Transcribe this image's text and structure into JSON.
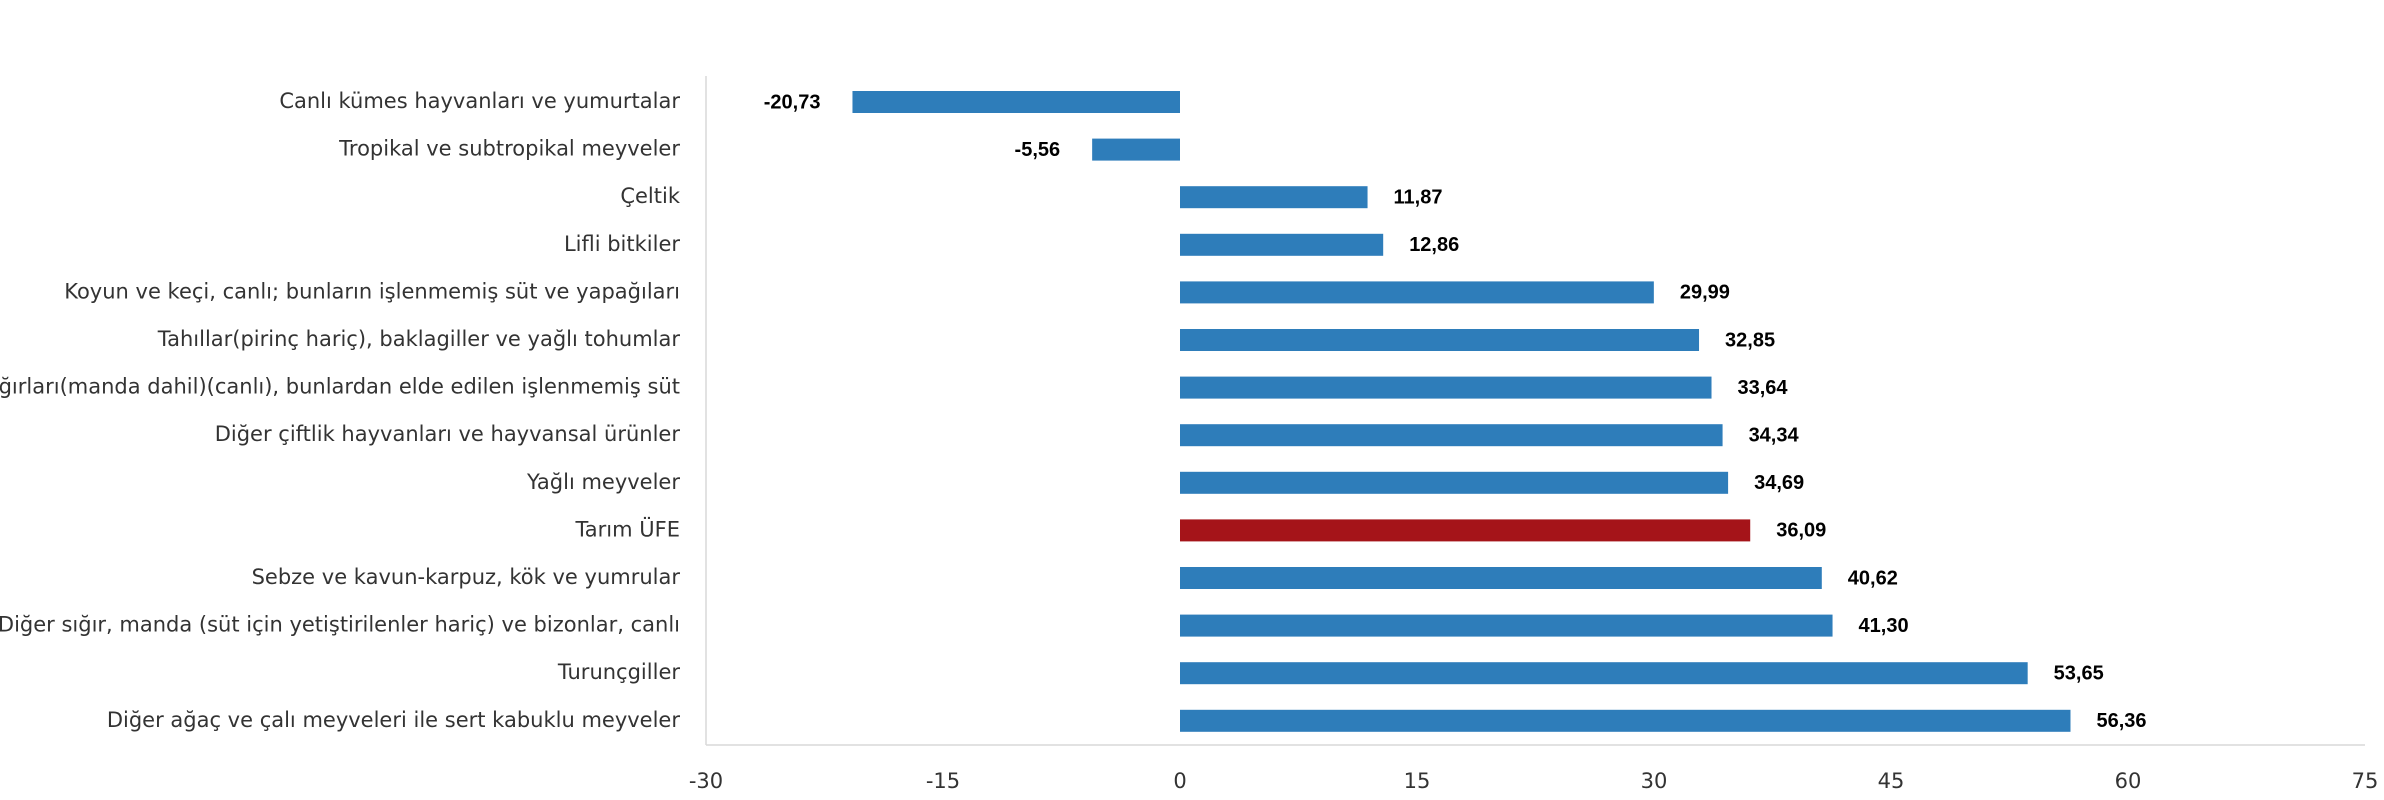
{
  "chart_data": {
    "type": "bar",
    "orientation": "horizontal",
    "categories": [
      "Canlı kümes hayvanları ve yumurtalar",
      "Tropikal ve subtropikal meyveler",
      "Çeltik",
      "Lifli bitkiler",
      "Koyun ve keçi, canlı; bunların işlenmemiş süt ve yapağıları",
      "Tahıllar(pirinç hariç), baklagiller ve yağlı tohumlar",
      "Süt sığırları(manda dahil)(canlı), bunlardan elde edilen işlenmemiş süt",
      "Diğer çiftlik hayvanları ve hayvansal ürünler",
      "Yağlı meyveler",
      "Tarım ÜFE",
      "Sebze ve kavun-karpuz, kök ve yumrular",
      "Diğer sığır, manda (süt için yetiştirilenler hariç) ve bizonlar, canlı",
      "Turunçgiller",
      "Diğer ağaç ve çalı meyveleri ile sert kabuklu meyveler"
    ],
    "values": [
      -20.73,
      -5.56,
      11.87,
      12.86,
      29.99,
      32.85,
      33.64,
      34.34,
      34.69,
      36.09,
      40.62,
      41.3,
      53.65,
      56.36
    ],
    "value_labels": [
      "-20,73",
      "-5,56",
      "11,87",
      "12,86",
      "29,99",
      "32,85",
      "33,64",
      "34,34",
      "34,69",
      "36,09",
      "40,62",
      "41,30",
      "53,65",
      "56,36"
    ],
    "highlight_category": "Tarım ÜFE",
    "colors": {
      "default": "#2e7dba",
      "highlight": "#a51419"
    },
    "xlim": [
      -30,
      75
    ],
    "xticks": [
      -30,
      -15,
      0,
      15,
      30,
      45,
      60,
      75
    ],
    "xtick_labels": [
      "-30",
      "-15",
      "0",
      "15",
      "30",
      "45",
      "60",
      "75"
    ],
    "title": "",
    "xlabel": "",
    "ylabel": "",
    "grid": false,
    "legend": "none"
  }
}
